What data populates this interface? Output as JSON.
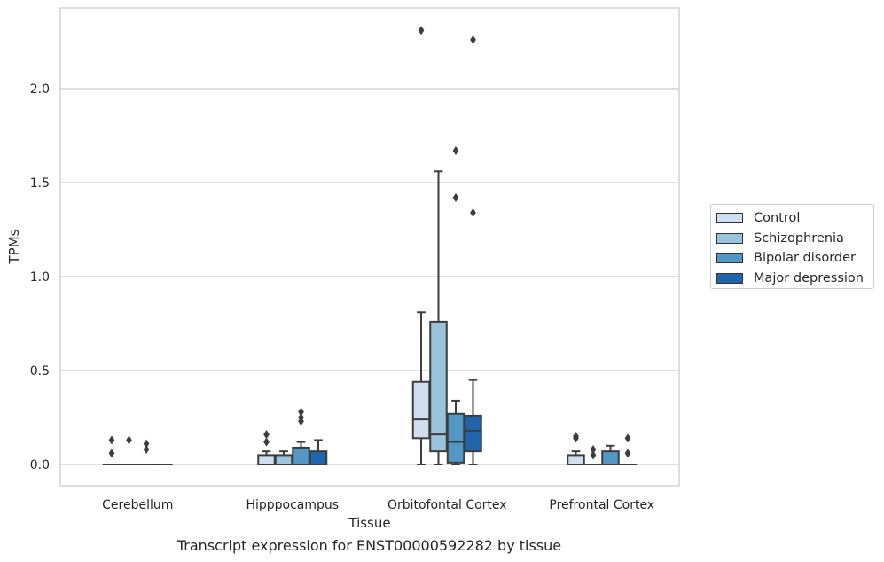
{
  "chart_data": {
    "type": "box",
    "xlabel": "Tissue",
    "ylabel": "TPMs",
    "caption": "Transcript expression for ENST00000592282 by tissue",
    "ylim": [
      -0.11,
      2.43
    ],
    "yticks": [
      0.0,
      0.5,
      1.0,
      1.5,
      2.0
    ],
    "ytick_labels": [
      "0.0",
      "0.5",
      "1.0",
      "1.5",
      "2.0"
    ],
    "grid": "horizontal",
    "legend_position": "right",
    "categories": [
      "Cerebellum",
      "Hipppocampus",
      "Orbitofontal Cortex",
      "Prefrontal Cortex"
    ],
    "series": [
      {
        "name": "Control",
        "color": "#d0dfef",
        "boxes": [
          {
            "whislo": 0,
            "q1": 0,
            "med": 0,
            "q3": 0,
            "whishi": 0,
            "fliers": [
              0.06,
              0.13
            ]
          },
          {
            "whislo": 0,
            "q1": 0,
            "med": 0,
            "q3": 0.05,
            "whishi": 0.07,
            "fliers": [
              0.12,
              0.16
            ]
          },
          {
            "whislo": 0,
            "q1": 0.14,
            "med": 0.24,
            "q3": 0.44,
            "whishi": 0.81,
            "fliers": [
              2.31
            ]
          },
          {
            "whislo": 0,
            "q1": 0,
            "med": 0,
            "q3": 0.05,
            "whishi": 0.07,
            "fliers": [
              0.14,
              0.15
            ]
          }
        ]
      },
      {
        "name": "Schizophrenia",
        "color": "#9ac3dc",
        "boxes": [
          {
            "whislo": 0,
            "q1": 0,
            "med": 0,
            "q3": 0,
            "whishi": 0,
            "fliers": [
              0.13
            ]
          },
          {
            "whislo": 0,
            "q1": 0,
            "med": 0,
            "q3": 0.05,
            "whishi": 0.07,
            "fliers": []
          },
          {
            "whislo": 0,
            "q1": 0.07,
            "med": 0.16,
            "q3": 0.76,
            "whishi": 1.56,
            "fliers": []
          },
          {
            "whislo": 0,
            "q1": 0,
            "med": 0,
            "q3": 0,
            "whishi": 0,
            "fliers": [
              0.05,
              0.08
            ]
          }
        ]
      },
      {
        "name": "Bipolar disorder",
        "color": "#5397c5",
        "boxes": [
          {
            "whislo": 0,
            "q1": 0,
            "med": 0,
            "q3": 0,
            "whishi": 0,
            "fliers": [
              0.08,
              0.11
            ]
          },
          {
            "whislo": 0,
            "q1": 0,
            "med": 0,
            "q3": 0.09,
            "whishi": 0.12,
            "fliers": [
              0.23,
              0.25,
              0.28
            ]
          },
          {
            "whislo": 0,
            "q1": 0.01,
            "med": 0.12,
            "q3": 0.27,
            "whishi": 0.34,
            "fliers": [
              1.42,
              1.67
            ]
          },
          {
            "whislo": 0,
            "q1": 0,
            "med": 0,
            "q3": 0.07,
            "whishi": 0.1,
            "fliers": []
          }
        ]
      },
      {
        "name": "Major depression",
        "color": "#2065ab",
        "boxes": [
          {
            "whislo": 0,
            "q1": 0,
            "med": 0,
            "q3": 0,
            "whishi": 0,
            "fliers": []
          },
          {
            "whislo": 0,
            "q1": 0,
            "med": 0,
            "q3": 0.07,
            "whishi": 0.13,
            "fliers": []
          },
          {
            "whislo": 0,
            "q1": 0.07,
            "med": 0.18,
            "q3": 0.26,
            "whishi": 0.45,
            "fliers": [
              1.34,
              2.26
            ]
          },
          {
            "whislo": 0,
            "q1": 0,
            "med": 0,
            "q3": 0,
            "whishi": 0,
            "fliers": [
              0.06,
              0.14
            ]
          }
        ]
      }
    ]
  }
}
